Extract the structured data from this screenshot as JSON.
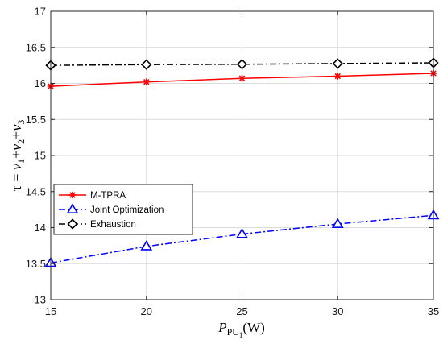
{
  "chart_data": {
    "type": "line",
    "x": [
      15,
      20,
      25,
      30,
      35
    ],
    "xlim": [
      15,
      35
    ],
    "ylim": [
      13,
      17
    ],
    "xticks": [
      15,
      20,
      25,
      30,
      35
    ],
    "yticks": [
      13,
      13.5,
      14,
      14.5,
      15,
      15.5,
      16,
      16.5,
      17
    ],
    "grid": true,
    "legend_position": "center-left",
    "xlabel": {
      "main": "P",
      "sub": "PU",
      "subsub": "1",
      "unit": "(W)"
    },
    "ylabel": {
      "prefix": "τ = ",
      "terms": [
        {
          "sym": "v",
          "sub": "1"
        },
        {
          "sym": "v",
          "sub": "2"
        },
        {
          "sym": "v",
          "sub": "3"
        }
      ],
      "join": "+"
    },
    "series": [
      {
        "name": "M-TPRA",
        "values": [
          15.96,
          16.02,
          16.07,
          16.1,
          16.14
        ],
        "color": "#ff0000",
        "marker": "asterisk",
        "dash": "solid"
      },
      {
        "name": "Joint Optimization",
        "values": [
          13.51,
          13.74,
          13.91,
          14.05,
          14.17
        ],
        "color": "#0000ff",
        "marker": "triangle",
        "dash": "dashdot"
      },
      {
        "name": "Exhaustion",
        "values": [
          16.25,
          16.26,
          16.265,
          16.275,
          16.285
        ],
        "color": "#000000",
        "marker": "diamond",
        "dash": "dashdot"
      }
    ]
  }
}
